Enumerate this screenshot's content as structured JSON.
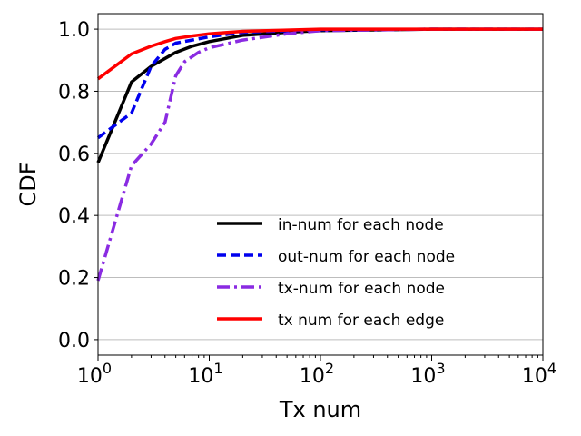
{
  "chart_data": {
    "type": "line",
    "xlabel": "Tx num",
    "ylabel": "CDF",
    "xscale": "log",
    "xlim": [
      1,
      10000
    ],
    "ylim": [
      -0.05,
      1.05
    ],
    "grid": "horizontal",
    "legend_position": "bottom-right",
    "x_ticks": [
      {
        "value": 1,
        "base": "10",
        "exp": "0"
      },
      {
        "value": 10,
        "base": "10",
        "exp": "1"
      },
      {
        "value": 100,
        "base": "10",
        "exp": "2"
      },
      {
        "value": 1000,
        "base": "10",
        "exp": "3"
      },
      {
        "value": 10000,
        "base": "10",
        "exp": "4"
      }
    ],
    "y_ticks": [
      {
        "value": 0.0,
        "label": "0.0"
      },
      {
        "value": 0.2,
        "label": "0.2"
      },
      {
        "value": 0.4,
        "label": "0.4"
      },
      {
        "value": 0.6,
        "label": "0.6"
      },
      {
        "value": 0.8,
        "label": "0.8"
      },
      {
        "value": 1.0,
        "label": "1.0"
      }
    ],
    "series": [
      {
        "name": "in-num for each node",
        "color": "#000000",
        "style": "solid",
        "x": [
          1,
          2,
          3,
          5,
          7,
          10,
          20,
          50,
          100,
          1000,
          10000
        ],
        "y": [
          0.57,
          0.83,
          0.88,
          0.925,
          0.945,
          0.96,
          0.98,
          0.99,
          0.995,
          1.0,
          1.0
        ]
      },
      {
        "name": "out-num for each node",
        "color": "#0000ee",
        "style": "dashed",
        "x": [
          1,
          2,
          3,
          4,
          5,
          7,
          10,
          20,
          50,
          100,
          1000,
          10000
        ],
        "y": [
          0.65,
          0.73,
          0.88,
          0.935,
          0.955,
          0.965,
          0.975,
          0.99,
          0.995,
          0.998,
          1.0,
          1.0
        ]
      },
      {
        "name": "tx-num for each node",
        "color": "#8a2be2",
        "style": "dashdot",
        "x": [
          1,
          2,
          3,
          4,
          5,
          6,
          8,
          10,
          20,
          50,
          100,
          1000,
          10000
        ],
        "y": [
          0.19,
          0.56,
          0.63,
          0.7,
          0.85,
          0.895,
          0.925,
          0.94,
          0.965,
          0.985,
          0.995,
          1.0,
          1.0
        ]
      },
      {
        "name": "tx num for each edge",
        "color": "#ff0000",
        "style": "solid",
        "x": [
          1,
          2,
          3,
          4,
          5,
          7,
          10,
          20,
          50,
          100,
          1000,
          10000
        ],
        "y": [
          0.84,
          0.92,
          0.945,
          0.96,
          0.97,
          0.978,
          0.985,
          0.993,
          0.997,
          1.0,
          1.0,
          1.0
        ]
      }
    ]
  }
}
